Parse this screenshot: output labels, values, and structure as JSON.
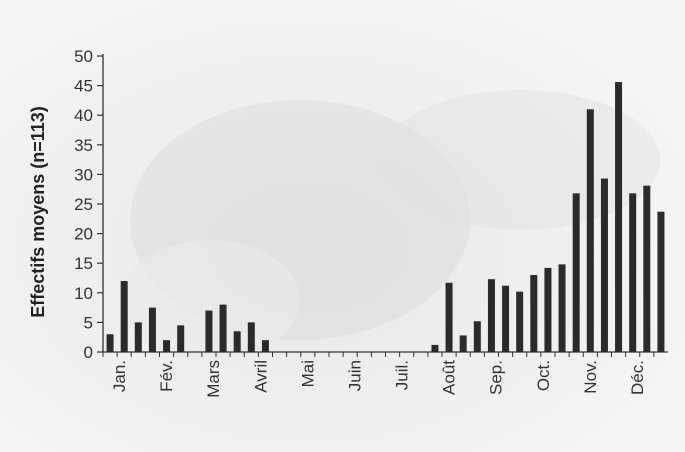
{
  "chart_data": {
    "type": "bar",
    "title": "",
    "xlabel": "",
    "ylabel": "Effectifs moyens (n=113)",
    "ylim": [
      0,
      50
    ],
    "yticks": [
      0,
      5,
      10,
      15,
      20,
      25,
      30,
      35,
      40,
      45,
      50
    ],
    "grid": false,
    "legend": "none",
    "bar_color": "#2b2b2b",
    "months": [
      "Jan.",
      "Fév.",
      "Mars",
      "Avril",
      "Mai",
      "Juin",
      "Juil.",
      "Août",
      "Sep.",
      "Oct.",
      "Nov.",
      "Déc."
    ],
    "values": [
      3.0,
      12.0,
      5.0,
      7.5,
      2.0,
      4.5,
      0,
      7.0,
      8.0,
      3.5,
      5.0,
      2.0,
      0,
      0,
      0,
      0,
      0,
      0,
      0,
      0,
      0,
      0,
      0,
      1.2,
      11.7,
      2.8,
      5.2,
      12.3,
      11.2,
      10.2,
      13.0,
      14.2,
      14.8,
      26.8,
      41.0,
      29.3,
      45.6,
      26.8,
      28.1,
      23.7
    ]
  }
}
